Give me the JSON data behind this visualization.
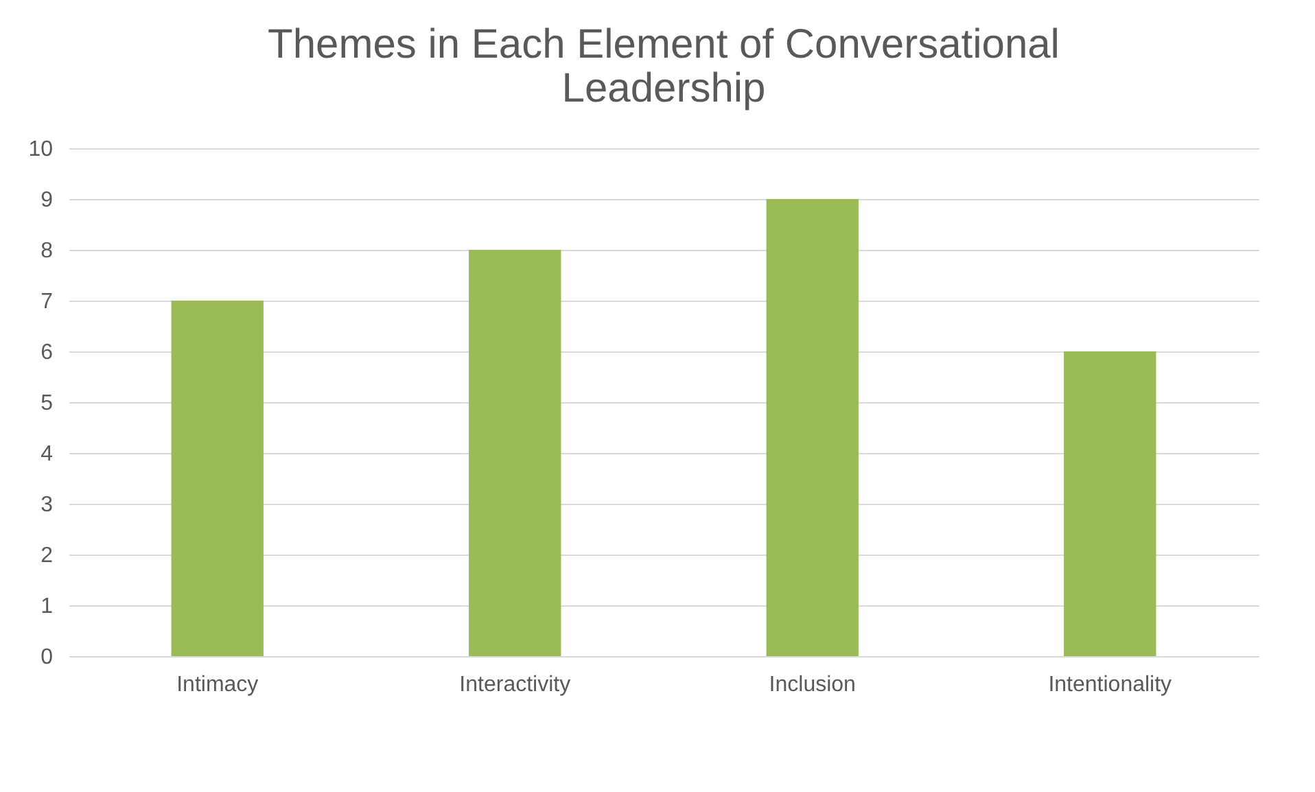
{
  "chart_data": {
    "type": "bar",
    "title": "Themes in Each Element of Conversational Leadership",
    "categories": [
      "Intimacy",
      "Interactivity",
      "Inclusion",
      "Intentionality"
    ],
    "values": [
      7,
      8,
      9,
      6
    ],
    "color": "#9bbb59",
    "ylim": [
      0,
      10
    ],
    "yticks": [
      0,
      1,
      2,
      3,
      4,
      5,
      6,
      7,
      8,
      9,
      10
    ],
    "grid": "y"
  }
}
